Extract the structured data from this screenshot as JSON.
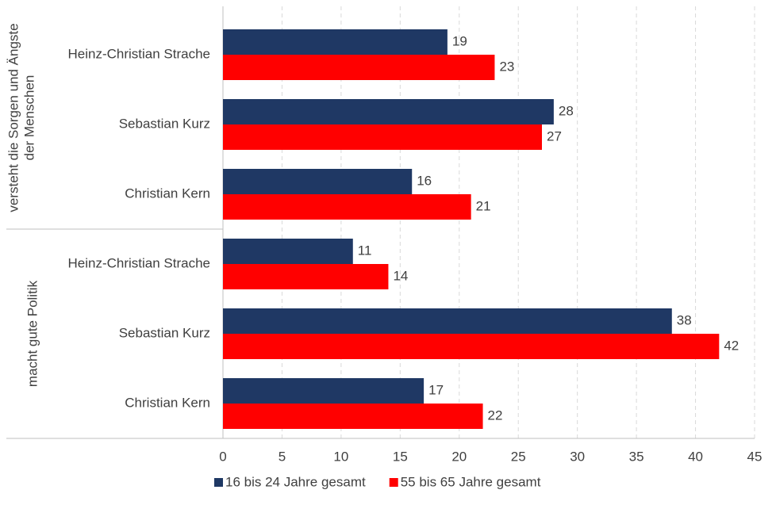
{
  "chart_data": {
    "type": "bar",
    "orientation": "horizontal",
    "groups": [
      {
        "label_lines": [
          "versteht  die Sorgen und Ängste",
          "der Menschen"
        ]
      },
      {
        "label_lines": [
          "macht gute Politik"
        ]
      }
    ],
    "categories": [
      "Heinz-Christian Strache",
      "Sebastian Kurz",
      "Christian Kern",
      "Heinz-Christian Strache",
      "Sebastian Kurz",
      "Christian Kern"
    ],
    "series": [
      {
        "name": "16 bis 24 Jahre gesamt",
        "color": "#1f3864",
        "values": [
          19,
          28,
          16,
          11,
          38,
          17
        ]
      },
      {
        "name": "55 bis 65 Jahre gesamt",
        "color": "#ff0000",
        "values": [
          23,
          27,
          21,
          14,
          42,
          22
        ]
      }
    ],
    "xlim": [
      0,
      45
    ],
    "xticks": [
      0,
      5,
      10,
      15,
      20,
      25,
      30,
      35,
      40,
      45
    ],
    "grid": true,
    "legend": "bottom"
  }
}
